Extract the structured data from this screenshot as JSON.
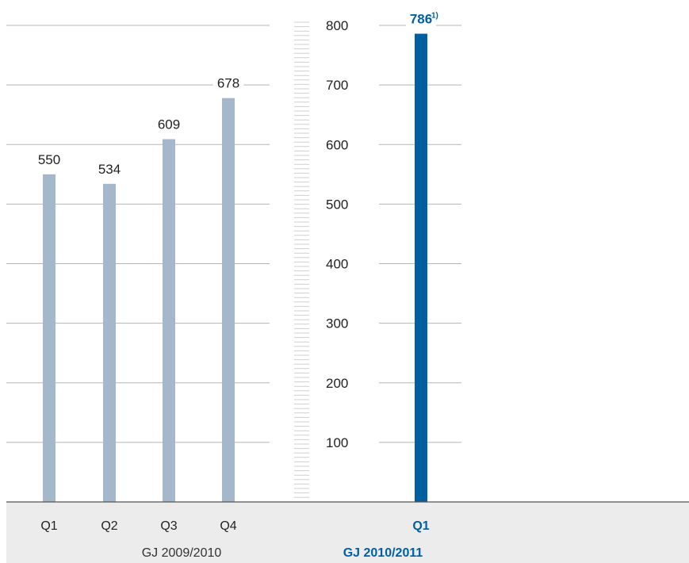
{
  "chart_data": {
    "type": "bar",
    "title": "",
    "xlabel": "",
    "ylabel": "",
    "ylim": [
      0,
      800
    ],
    "yticks": [
      100,
      200,
      300,
      400,
      500,
      600,
      700,
      800
    ],
    "grid": true,
    "groups": [
      {
        "name": "GJ 2009/2010",
        "categories": [
          "Q1",
          "Q2",
          "Q3",
          "Q4"
        ],
        "values": [
          550,
          534,
          609,
          678
        ],
        "color": "#a5b8cb"
      },
      {
        "name": "GJ 2010/2011",
        "categories": [
          "Q1"
        ],
        "values": [
          786
        ],
        "color": "#00609f",
        "highlight": true,
        "footnote": "1)"
      }
    ]
  },
  "colors": {
    "accent": "#00609f",
    "bar_prior": "#a5b8cb",
    "gridline": "#b5b5b5",
    "footer_bg": "#ececec"
  }
}
